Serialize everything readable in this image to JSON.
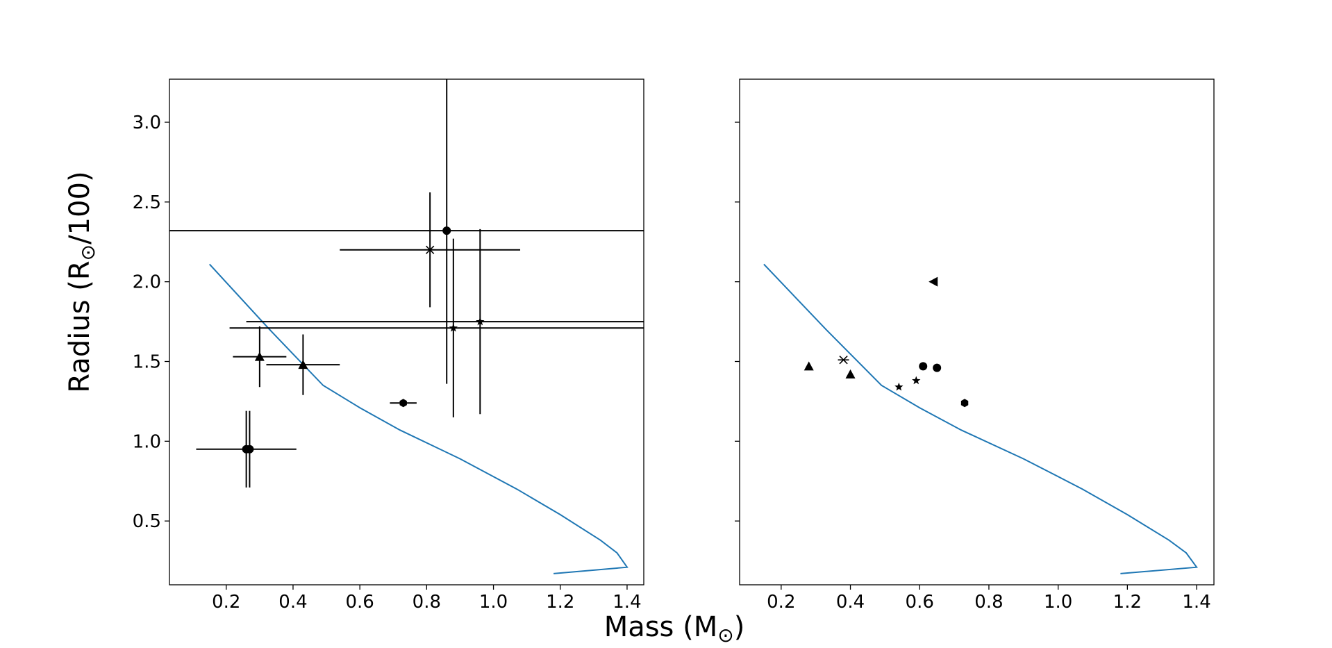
{
  "figure": {
    "xlabel_main": "Mass (M",
    "xlabel_sub": "⊙",
    "xlabel_close": ")",
    "ylabel_main": "Radius (R",
    "ylabel_sub": "⊙",
    "ylabel_close": "/100)"
  },
  "chart_data": [
    {
      "type": "scatter",
      "panel": "left",
      "xlim": [
        0.03,
        1.45
      ],
      "ylim": [
        0.1,
        3.27
      ],
      "x_ticks": [
        0.2,
        0.4,
        0.6,
        0.8,
        1.0,
        1.2,
        1.4
      ],
      "y_ticks": [
        0.5,
        1.0,
        1.5,
        2.0,
        2.5,
        3.0
      ],
      "grid": false,
      "line_color": "#1f77b4",
      "marker_color": "#000000",
      "mass_radius_curve": {
        "x": [
          0.15,
          0.33,
          0.49,
          0.6,
          0.72,
          0.9,
          1.07,
          1.2,
          1.32,
          1.37,
          1.4,
          1.18
        ],
        "y": [
          2.11,
          1.7,
          1.35,
          1.21,
          1.07,
          0.89,
          0.7,
          0.54,
          0.38,
          0.3,
          0.21,
          0.17
        ]
      },
      "points": [
        {
          "x": 0.86,
          "y": 2.32,
          "marker": "circle",
          "xerr": [
            0.86,
            0.9
          ],
          "yerr": [
            0.96,
            1.0
          ]
        },
        {
          "x": 0.81,
          "y": 2.2,
          "marker": "x-star",
          "xerr": [
            0.27,
            0.27
          ],
          "yerr": [
            0.36,
            0.36
          ]
        },
        {
          "x": 0.96,
          "y": 1.75,
          "marker": "star",
          "xerr": [
            0.7,
            0.7
          ],
          "yerr": [
            0.58,
            0.58
          ]
        },
        {
          "x": 0.88,
          "y": 1.71,
          "marker": "star",
          "xerr": [
            0.67,
            0.67
          ],
          "yerr": [
            0.56,
            0.56
          ]
        },
        {
          "x": 0.3,
          "y": 1.53,
          "marker": "triangle-up",
          "xerr": [
            0.08,
            0.08
          ],
          "yerr": [
            0.19,
            0.19
          ]
        },
        {
          "x": 0.43,
          "y": 1.48,
          "marker": "triangle-up",
          "xerr": [
            0.11,
            0.11
          ],
          "yerr": [
            0.19,
            0.19
          ]
        },
        {
          "x": 0.73,
          "y": 1.24,
          "marker": "hexagon",
          "xerr": [
            0.04,
            0.04
          ],
          "yerr": [
            0.01,
            0.01
          ]
        },
        {
          "x": 0.26,
          "y": 0.95,
          "marker": "circle",
          "xerr": [
            0.15,
            0.15
          ],
          "yerr": [
            0.24,
            0.24
          ]
        },
        {
          "x": 0.27,
          "y": 0.95,
          "marker": "circle",
          "xerr": [
            0.0,
            0.0
          ],
          "yerr": [
            0.24,
            0.24
          ]
        }
      ]
    },
    {
      "type": "scatter",
      "panel": "right",
      "xlim": [
        0.08,
        1.45
      ],
      "ylim": [
        0.1,
        3.27
      ],
      "x_ticks": [
        0.2,
        0.4,
        0.6,
        0.8,
        1.0,
        1.2,
        1.4
      ],
      "y_ticks": [
        0.5,
        1.0,
        1.5,
        2.0,
        2.5,
        3.0
      ],
      "y_tick_labels_shown": false,
      "grid": false,
      "line_color": "#1f77b4",
      "marker_color": "#000000",
      "mass_radius_curve": {
        "x": [
          0.15,
          0.33,
          0.49,
          0.6,
          0.72,
          0.9,
          1.07,
          1.2,
          1.32,
          1.37,
          1.4,
          1.18
        ],
        "y": [
          2.11,
          1.7,
          1.35,
          1.21,
          1.07,
          0.89,
          0.7,
          0.54,
          0.38,
          0.3,
          0.21,
          0.17
        ]
      },
      "points": [
        {
          "x": 0.64,
          "y": 2.0,
          "marker": "triangle-left"
        },
        {
          "x": 0.38,
          "y": 1.51,
          "marker": "x-star"
        },
        {
          "x": 0.28,
          "y": 1.47,
          "marker": "triangle-up"
        },
        {
          "x": 0.4,
          "y": 1.42,
          "marker": "triangle-up"
        },
        {
          "x": 0.61,
          "y": 1.47,
          "marker": "circle"
        },
        {
          "x": 0.65,
          "y": 1.46,
          "marker": "circle"
        },
        {
          "x": 0.54,
          "y": 1.34,
          "marker": "star"
        },
        {
          "x": 0.59,
          "y": 1.38,
          "marker": "star"
        },
        {
          "x": 0.73,
          "y": 1.24,
          "marker": "hexagon"
        }
      ]
    }
  ]
}
